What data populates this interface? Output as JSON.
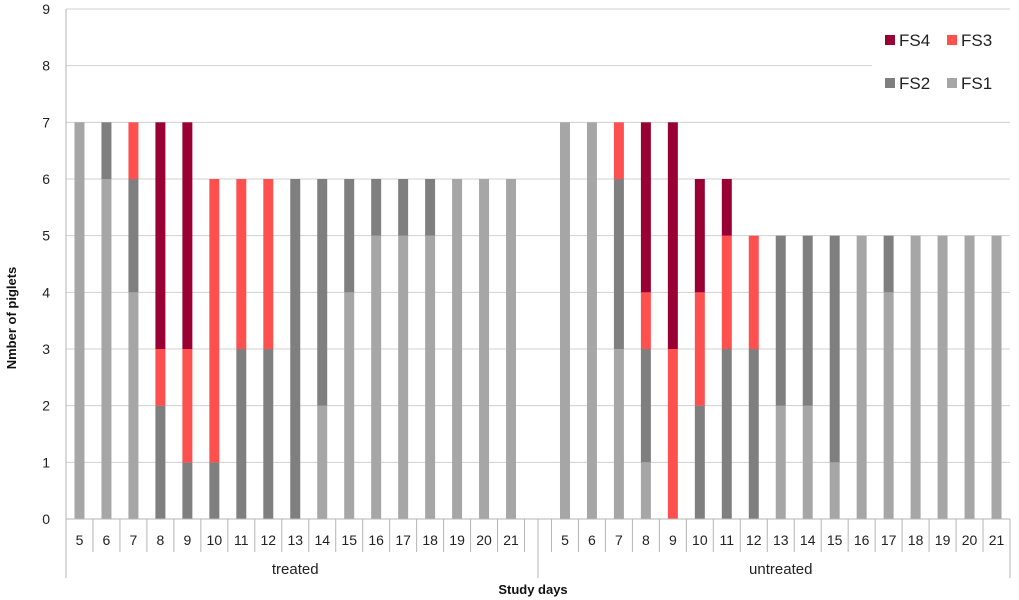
{
  "chart_data": {
    "type": "bar",
    "stacked": true,
    "xlabel": "Study days",
    "ylabel": "Nmber of piglets",
    "ylim": [
      0,
      9
    ],
    "yticks": [
      0,
      1,
      2,
      3,
      4,
      5,
      6,
      7,
      8,
      9
    ],
    "grid": true,
    "legend_position": "top-right",
    "legend_order": [
      "FS4",
      "FS3",
      "FS2",
      "FS1"
    ],
    "series_colors": {
      "FS1": "#a6a6a6",
      "FS2": "#7f7f7f",
      "FS3": "#ff5050",
      "FS4": "#990033"
    },
    "groups": [
      {
        "label": "treated",
        "categories": [
          "5",
          "6",
          "7",
          "8",
          "9",
          "10",
          "11",
          "12",
          "13",
          "14",
          "15",
          "16",
          "17",
          "18",
          "19",
          "20",
          "21"
        ],
        "series": [
          {
            "name": "FS1",
            "values": [
              7,
              6,
              4,
              0,
              0,
              0,
              0,
              0,
              0,
              2,
              4,
              5,
              5,
              5,
              6,
              6,
              6
            ]
          },
          {
            "name": "FS2",
            "values": [
              0,
              1,
              2,
              2,
              1,
              1,
              3,
              3,
              6,
              4,
              2,
              1,
              1,
              1,
              0,
              0,
              0
            ]
          },
          {
            "name": "FS3",
            "values": [
              0,
              0,
              1,
              1,
              2,
              5,
              3,
              3,
              0,
              0,
              0,
              0,
              0,
              0,
              0,
              0,
              0
            ]
          },
          {
            "name": "FS4",
            "values": [
              0,
              0,
              0,
              4,
              4,
              0,
              0,
              0,
              0,
              0,
              0,
              0,
              0,
              0,
              0,
              0,
              0
            ]
          }
        ]
      },
      {
        "label": "untreated",
        "categories": [
          "5",
          "6",
          "7",
          "8",
          "9",
          "10",
          "11",
          "12",
          "13",
          "14",
          "15",
          "16",
          "17",
          "18",
          "19",
          "20",
          "21"
        ],
        "series": [
          {
            "name": "FS1",
            "values": [
              7,
              7,
              3,
              1,
              0,
              0,
              0,
              0,
              2,
              2,
              1,
              5,
              4,
              5,
              5,
              5,
              5
            ]
          },
          {
            "name": "FS2",
            "values": [
              0,
              0,
              3,
              2,
              0,
              2,
              3,
              3,
              3,
              3,
              4,
              0,
              1,
              0,
              0,
              0,
              0
            ]
          },
          {
            "name": "FS3",
            "values": [
              0,
              0,
              1,
              1,
              3,
              2,
              2,
              2,
              0,
              0,
              0,
              0,
              0,
              0,
              0,
              0,
              0
            ]
          },
          {
            "name": "FS4",
            "values": [
              0,
              0,
              0,
              3,
              4,
              2,
              1,
              0,
              0,
              0,
              0,
              0,
              0,
              0,
              0,
              0,
              0
            ]
          }
        ]
      }
    ]
  }
}
